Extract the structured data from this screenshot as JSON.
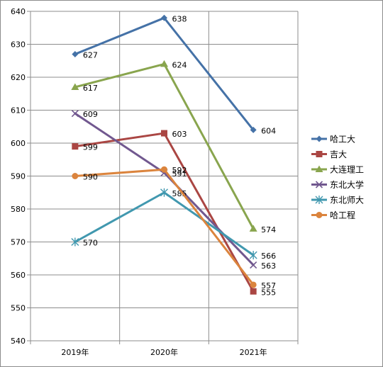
{
  "chart_data": {
    "type": "line",
    "categories": [
      "2019年",
      "2020年",
      "2021年"
    ],
    "ylim": [
      540,
      640
    ],
    "ytick_step": 10,
    "grid": true,
    "legend_position": "right",
    "series": [
      {
        "name": "哈工大",
        "values": [
          627,
          638,
          604
        ],
        "color": "#4572a7",
        "marker": "diamond"
      },
      {
        "name": "吉大",
        "values": [
          599,
          603,
          555
        ],
        "color": "#aa4643",
        "marker": "square"
      },
      {
        "name": "大连理工",
        "values": [
          617,
          624,
          574
        ],
        "color": "#89a54e",
        "marker": "triangle"
      },
      {
        "name": "东北大学",
        "values": [
          609,
          591,
          563
        ],
        "color": "#71588f",
        "marker": "x"
      },
      {
        "name": "东北师大",
        "values": [
          570,
          585,
          566
        ],
        "color": "#4198af",
        "marker": "star"
      },
      {
        "name": "哈工程",
        "values": [
          590,
          592,
          557
        ],
        "color": "#db843d",
        "marker": "circle"
      }
    ]
  }
}
